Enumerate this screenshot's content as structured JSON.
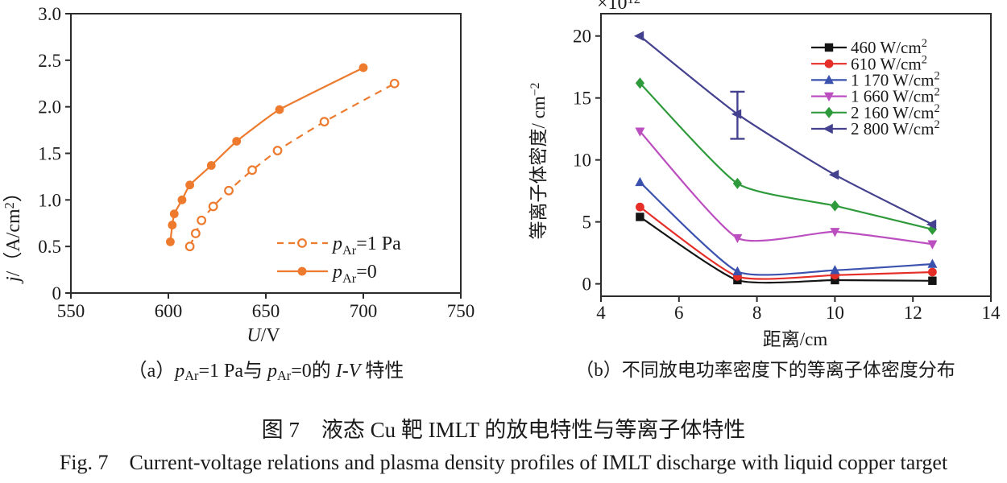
{
  "figure": {
    "captions": {
      "a_rich": [
        {
          "t": "（a）"
        },
        {
          "t": "p",
          "i": true
        },
        {
          "t": "Ar",
          "sub": true
        },
        {
          "t": "=1 Pa与 "
        },
        {
          "t": "p",
          "i": true
        },
        {
          "t": "Ar",
          "sub": true
        },
        {
          "t": "=0的 "
        },
        {
          "t": "I-V",
          "i": true
        },
        {
          "t": " 特性"
        }
      ],
      "b": "（b）不同放电功率密度下的等离子体密度分布",
      "title_zh": "图 7　液态 Cu 靶 IMLT 的放电特性与等离子体特性",
      "title_en": "Fig. 7　Current-voltage relations and plasma density profiles of IMLT discharge with liquid copper target"
    },
    "axis_color": "#2b2b2b"
  },
  "chart_data": [
    {
      "id": "a",
      "type": "line",
      "xlabel_rich": [
        {
          "t": "U",
          "i": true
        },
        {
          "t": "/V"
        }
      ],
      "ylabel_rich": [
        {
          "t": "j",
          "i": true
        },
        {
          "t": "/（A/cm"
        },
        {
          "t": "2",
          "sup": true
        },
        {
          "t": "）"
        }
      ],
      "xlim": [
        550,
        750
      ],
      "ylim": [
        0,
        3
      ],
      "xticks": [
        550,
        600,
        650,
        700,
        750
      ],
      "xtick_labels": [
        "550",
        "600",
        "650",
        "700",
        "750"
      ],
      "yticks": [
        0,
        0.5,
        1,
        1.5,
        2,
        2.5,
        3
      ],
      "ytick_labels": [
        "0",
        "0.5",
        "1.0",
        "1.5",
        "2.0",
        "2.5",
        "3.0"
      ],
      "grid": false,
      "legend_position": "inside lower right",
      "series": [
        {
          "name": "pAr=1 Pa",
          "label_rich": [
            {
              "t": "p",
              "i": true
            },
            {
              "t": "Ar",
              "sub": true
            },
            {
              "t": "=1 Pa"
            }
          ],
          "color": "#ED7A2D",
          "line": "dashed",
          "marker": "circle-open",
          "x": [
            611,
            614,
            617,
            623,
            631,
            643,
            656,
            680,
            716
          ],
          "y": [
            0.5,
            0.64,
            0.78,
            0.93,
            1.1,
            1.32,
            1.53,
            1.84,
            2.25
          ]
        },
        {
          "name": "pAr=0",
          "label_rich": [
            {
              "t": "p",
              "i": true
            },
            {
              "t": "Ar",
              "sub": true
            },
            {
              "t": "=0"
            }
          ],
          "color": "#ED7A2D",
          "line": "solid",
          "marker": "circle",
          "x": [
            601,
            602,
            603,
            607,
            611,
            622,
            635,
            657,
            700
          ],
          "y": [
            0.55,
            0.73,
            0.85,
            1.0,
            1.16,
            1.37,
            1.63,
            1.97,
            2.42
          ]
        }
      ]
    },
    {
      "id": "b",
      "type": "line",
      "xlabel": "距离/cm",
      "ylabel_rich": [
        {
          "t": "等离子体密度/ cm"
        },
        {
          "t": "−2",
          "sup": true
        }
      ],
      "scale_rich": [
        {
          "t": "×10"
        },
        {
          "t": "12",
          "sup": true
        }
      ],
      "xlim": [
        4,
        14
      ],
      "ylim": [
        -1,
        21.8
      ],
      "xticks": [
        4,
        6,
        8,
        10,
        12,
        14
      ],
      "xtick_labels": [
        "4",
        "6",
        "8",
        "10",
        "12",
        "14"
      ],
      "yticks": [
        0,
        5,
        10,
        15,
        20
      ],
      "ytick_labels": [
        "0",
        "5",
        "10",
        "15",
        "20"
      ],
      "grid": false,
      "legend_position": "inside upper right",
      "x": [
        5,
        7.5,
        10,
        12.5
      ],
      "series": [
        {
          "name": "460 W/cm2",
          "label_rich": [
            {
              "t": "460 W/cm"
            },
            {
              "t": "2",
              "sup": true
            }
          ],
          "color": "#141414",
          "line": "solid",
          "marker": "square",
          "values": [
            5.4,
            0.3,
            0.3,
            0.25
          ]
        },
        {
          "name": "610 W/cm2",
          "label_rich": [
            {
              "t": "610 W/cm"
            },
            {
              "t": "2",
              "sup": true
            }
          ],
          "color": "#E62E29",
          "line": "solid",
          "marker": "circle",
          "values": [
            6.2,
            0.6,
            0.7,
            0.95
          ]
        },
        {
          "name": "1 170 W/cm2",
          "label_rich": [
            {
              "t": "1 170 W/cm"
            },
            {
              "t": "2",
              "sup": true
            }
          ],
          "color": "#3B51AE",
          "line": "solid",
          "marker": "triangle-up",
          "values": [
            8.2,
            1.0,
            1.1,
            1.6
          ]
        },
        {
          "name": "1 660 W/cm2",
          "label_rich": [
            {
              "t": "1 660 W/cm"
            },
            {
              "t": "2",
              "sup": true
            }
          ],
          "color": "#BC4FC0",
          "line": "solid",
          "marker": "triangle-down",
          "values": [
            12.3,
            3.7,
            4.2,
            3.2
          ]
        },
        {
          "name": "2 160 W/cm2",
          "label_rich": [
            {
              "t": "2 160 W/cm"
            },
            {
              "t": "2",
              "sup": true
            }
          ],
          "color": "#2F9A3C",
          "line": "solid",
          "marker": "diamond",
          "values": [
            16.2,
            8.1,
            6.3,
            4.4
          ]
        },
        {
          "name": "2 800 W/cm2",
          "label_rich": [
            {
              "t": "2 800 W/cm"
            },
            {
              "t": "2",
              "sup": true
            }
          ],
          "color": "#44428F",
          "line": "solid",
          "marker": "triangle-left",
          "values": [
            20.0,
            13.7,
            8.8,
            4.8
          ],
          "error_bar": {
            "x": 7.5,
            "low": 11.7,
            "high": 15.5
          }
        }
      ]
    }
  ]
}
